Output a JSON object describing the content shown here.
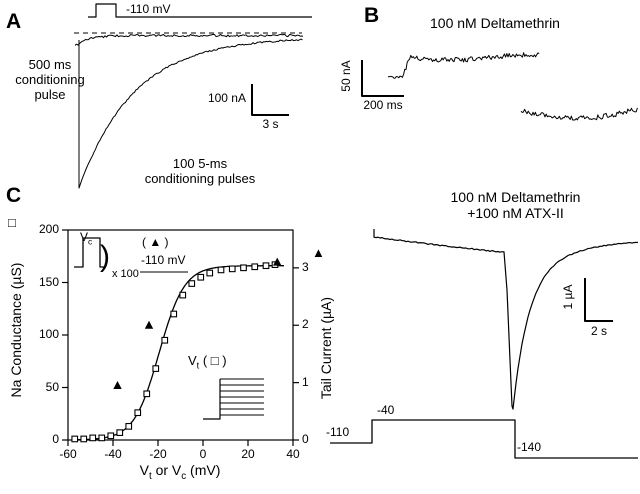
{
  "panelA": {
    "label": "A",
    "voltage_label": "-110 mV",
    "conditioning_label": "500 ms\nconditioning\npulse",
    "pulses_label": "100 5-ms\nconditioning pulses",
    "scalebar_vertical": "100 nA",
    "scalebar_horizontal": "3 s"
  },
  "panelB": {
    "label": "B",
    "title_top": "100 nM Deltamethrin",
    "scalebar_vertical_top": "50 nA",
    "scalebar_horizontal_top": "200 ms",
    "title_bottom": "100 nM Deltamethrin\n+100 nM ATX-II",
    "scalebar_vertical_bottom": "1 µA",
    "scalebar_horizontal_bottom": "2 s",
    "protocol": {
      "holding": "-110",
      "step": "-40",
      "tail": "-140"
    }
  },
  "panelC": {
    "label": "C",
    "left_axis_marker": "□",
    "right_axis_marker": "▲",
    "inset_pulse": {
      "v": "V",
      "sub": "c",
      "paren": ")",
      "multiplier": "x 100",
      "legend": "( ▲ )",
      "holding": "-110 mV"
    },
    "inset_steps": {
      "v": "V",
      "sub": "t",
      "legend": " ( □ )"
    },
    "xlabel": {
      "v1": "V",
      "s1": "t",
      "mid": " or V",
      "s2": "c",
      "end": "  (mV)"
    }
  },
  "chart_data": {
    "type": "scatter",
    "xlabel": "Vt or Vc (mV)",
    "ylabel_left": "Na Conductance (µS)",
    "ylabel_right": "Tail Current (µA)",
    "xlim": [
      -60,
      40
    ],
    "ylim_left": [
      0,
      200
    ],
    "ylim_right": [
      0,
      3.66
    ],
    "xticks": [
      -60,
      -40,
      -20,
      0,
      20,
      40
    ],
    "yticks_left": [
      0,
      50,
      100,
      150,
      200
    ],
    "yticks_right": [
      0,
      1,
      2,
      3
    ],
    "grid": false,
    "series": [
      {
        "name": "Na conductance",
        "marker": "open-square",
        "axis": "left",
        "x": [
          -57,
          -53,
          -49,
          -45,
          -41,
          -37,
          -33,
          -29,
          -25,
          -21,
          -17,
          -13,
          -9,
          -5,
          -1,
          3,
          8,
          13,
          18,
          23,
          28,
          32
        ],
        "y": [
          1,
          1,
          2,
          2,
          4,
          7,
          13,
          26,
          44,
          68,
          95,
          120,
          138,
          149,
          155,
          159,
          162,
          163,
          164,
          165,
          166,
          167
        ]
      },
      {
        "name": "Tail current",
        "marker": "filled-triangle",
        "axis": "right",
        "x": [
          -38,
          -24,
          33
        ],
        "y": [
          0.95,
          2.0,
          3.1
        ]
      }
    ],
    "fit": {
      "type": "boltzmann",
      "gmax": 166,
      "vhalf": -19.5,
      "k": 5.6
    }
  }
}
